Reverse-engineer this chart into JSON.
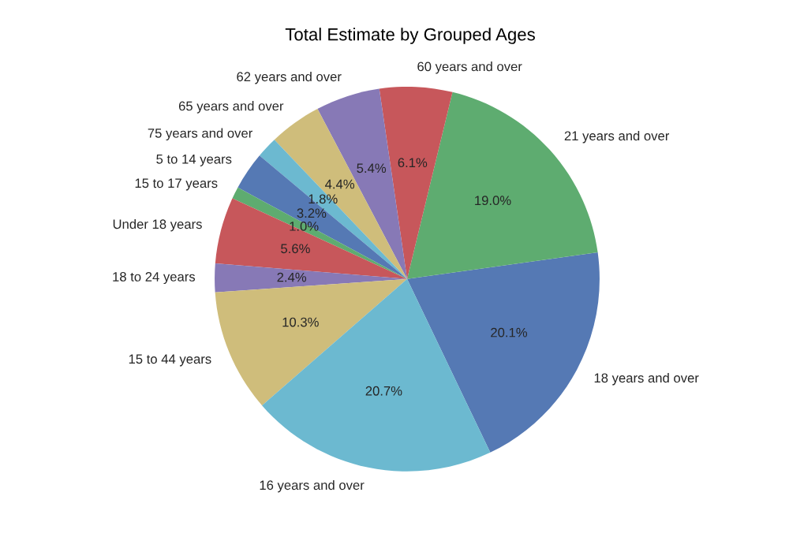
{
  "chart_data": {
    "type": "pie",
    "title": "Total Estimate by Grouped Ages",
    "categories": [
      "18 years and over",
      "21 years and over",
      "60 years and over",
      "62 years and over",
      "65 years and over",
      "75 years and over",
      "5 to 14 years",
      "15 to 17 years",
      "Under 18 years",
      "18 to 24 years",
      "15 to 44 years",
      "16 years and over"
    ],
    "values": [
      20.1,
      19.0,
      6.1,
      5.4,
      4.4,
      1.8,
      3.2,
      1.0,
      5.6,
      2.4,
      10.3,
      20.7
    ],
    "colors": [
      "#4c72b0",
      "#55a868",
      "#c44e52",
      "#8172b2",
      "#ccb974",
      "#64b5cd",
      "#4c72b0",
      "#55a868",
      "#c44e52",
      "#8172b2",
      "#ccb974",
      "#64b5cd"
    ],
    "value_labels": [
      "20.1%",
      "19.0%",
      "6.1%",
      "5.4%",
      "4.4%",
      "1.8%",
      "3.2%",
      "1.0%",
      "5.6%",
      "2.4%",
      "10.3%",
      "20.7%"
    ]
  }
}
